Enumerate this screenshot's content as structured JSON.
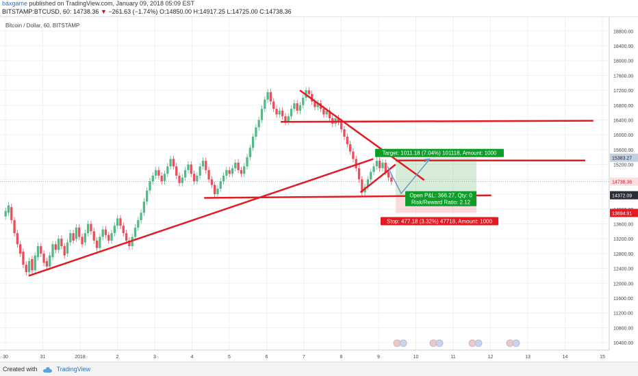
{
  "header": {
    "author": "baxgame",
    "published": "published on TradingView.com, January 09, 2018 05:09 EST",
    "symbol": "BITSTAMP:BTCUSD, 60",
    "last": "14738.36",
    "change_arrow": "▼",
    "change": "−261.63 (−1.74%)",
    "ohlc": "O:14850.00 H:14917.25 L:14725.00 C:14738.36"
  },
  "chart_title": "Bitcoin / Dollar, 60, BITSTAMP",
  "colors": {
    "up": "#53b987",
    "down": "#eb4d5c",
    "trend": "#e21a22",
    "target": "#0f9d2a",
    "stop": "#e21a22",
    "arrow": "#6f96c9",
    "axis_tag": "#c2d0e3"
  },
  "chart_data": {
    "type": "candlestick",
    "title": "Bitcoin / Dollar, 60, BITSTAMP",
    "y_ticks": [
      "18800.00",
      "18400.00",
      "18000.00",
      "17600.00",
      "17200.00",
      "16800.00",
      "16400.00",
      "16000.00",
      "15600.00",
      "15200.00",
      "14800.00",
      "14400.00",
      "14000.00",
      "13600.00",
      "13200.00",
      "12800.00",
      "12400.00",
      "12000.00",
      "11600.00",
      "11200.00",
      "10800.00",
      "10400.00"
    ],
    "x_ticks": [
      "30",
      "31",
      "2018",
      "2",
      "3",
      "4",
      "5",
      "6",
      "7",
      "8",
      "9",
      "10",
      "11",
      "12",
      "13",
      "14",
      "15"
    ],
    "ylim": [
      10200,
      19100
    ],
    "price_tags": [
      {
        "label": "15383.27",
        "value": 15383.27,
        "kind": "target"
      },
      {
        "label": "14738.36",
        "value": 14738.36,
        "kind": "last"
      },
      {
        "label": "14372.09",
        "value": 14372.09,
        "kind": "entry"
      },
      {
        "label": "13894.91",
        "value": 13894.91,
        "kind": "stop"
      }
    ],
    "position": {
      "target_label": "Target: 1011.18 (7.04%) 101118, Amount: 1000",
      "pnl_label": "Open P&L: 366.27, Qty: 0",
      "rr_label": "Risk/Reward Ratio: 2.12",
      "stop_label": "Stop: 477.18 (3.32%) 47718, Amount: 1000",
      "entry": 14372.09,
      "target": 15383.27,
      "stop": 13894.91
    },
    "candles": [
      [
        13800,
        13950
      ],
      [
        13900,
        14100
      ],
      [
        14050,
        13700
      ],
      [
        13700,
        13350
      ],
      [
        13350,
        13050
      ],
      [
        13050,
        12800
      ],
      [
        12850,
        12500
      ],
      [
        12500,
        12300
      ],
      [
        12300,
        12600
      ],
      [
        12650,
        12350
      ],
      [
        12350,
        12750
      ],
      [
        12700,
        13000
      ],
      [
        13000,
        12800
      ],
      [
        12800,
        12550
      ],
      [
        12600,
        12450
      ],
      [
        12450,
        12750
      ],
      [
        12700,
        13050
      ],
      [
        13050,
        12900
      ],
      [
        12900,
        13200
      ],
      [
        13200,
        13000
      ],
      [
        13000,
        12750
      ],
      [
        12800,
        13100
      ],
      [
        13100,
        13350
      ],
      [
        13350,
        13150
      ],
      [
        13200,
        13500
      ],
      [
        13500,
        13250
      ],
      [
        13250,
        13050
      ],
      [
        13100,
        13350
      ],
      [
        13350,
        13600
      ],
      [
        13600,
        13400
      ],
      [
        13400,
        13150
      ],
      [
        13150,
        12950
      ],
      [
        12950,
        13250
      ],
      [
        13250,
        13450
      ],
      [
        13450,
        13300
      ],
      [
        13300,
        13150
      ],
      [
        13150,
        13350
      ],
      [
        13350,
        13550
      ],
      [
        13550,
        13750
      ],
      [
        13750,
        13550
      ],
      [
        13550,
        13350
      ],
      [
        13350,
        13150
      ],
      [
        13150,
        13000
      ],
      [
        13000,
        13250
      ],
      [
        13250,
        13500
      ],
      [
        13500,
        13700
      ],
      [
        13700,
        13900
      ],
      [
        13900,
        14200
      ],
      [
        14200,
        14500
      ],
      [
        14500,
        14750
      ],
      [
        14750,
        14900
      ],
      [
        14900,
        15050
      ],
      [
        15050,
        14900
      ],
      [
        14900,
        14750
      ],
      [
        14750,
        14950
      ],
      [
        14950,
        15150
      ],
      [
        15150,
        15350
      ],
      [
        15350,
        15150
      ],
      [
        15150,
        14900
      ],
      [
        14900,
        14700
      ],
      [
        14700,
        14850
      ],
      [
        14850,
        15050
      ],
      [
        15050,
        15200
      ],
      [
        15200,
        14950
      ],
      [
        14950,
        14750
      ],
      [
        14750,
        14900
      ],
      [
        14900,
        15150
      ],
      [
        15150,
        15300
      ],
      [
        15300,
        15050
      ],
      [
        15050,
        14800
      ],
      [
        14800,
        14650
      ],
      [
        14650,
        14400
      ],
      [
        14400,
        14550
      ],
      [
        14550,
        14750
      ],
      [
        14750,
        14900
      ],
      [
        14900,
        15050
      ],
      [
        15050,
        14950
      ],
      [
        14950,
        15100
      ],
      [
        15100,
        15250
      ],
      [
        15250,
        15050
      ],
      [
        15050,
        14950
      ],
      [
        14950,
        15150
      ],
      [
        15150,
        15400
      ],
      [
        15400,
        15650
      ],
      [
        15650,
        15950
      ],
      [
        15950,
        16200
      ],
      [
        16200,
        16400
      ],
      [
        16400,
        16700
      ],
      [
        16700,
        16950
      ],
      [
        16950,
        17150
      ],
      [
        17150,
        16900
      ],
      [
        16900,
        16700
      ],
      [
        16700,
        16550
      ],
      [
        16550,
        16650
      ],
      [
        16650,
        16500
      ],
      [
        16500,
        16350
      ],
      [
        16350,
        16500
      ],
      [
        16500,
        16700
      ],
      [
        16700,
        16850
      ],
      [
        16850,
        16650
      ],
      [
        16650,
        16800
      ],
      [
        16800,
        17000
      ],
      [
        17000,
        17200
      ],
      [
        17200,
        17100
      ],
      [
        17100,
        16900
      ],
      [
        16900,
        16750
      ],
      [
        16750,
        16850
      ],
      [
        16850,
        16700
      ],
      [
        16700,
        16550
      ],
      [
        16550,
        16650
      ],
      [
        16650,
        16450
      ],
      [
        16450,
        16300
      ],
      [
        16300,
        16450
      ],
      [
        16450,
        16350
      ],
      [
        16350,
        16150
      ],
      [
        16150,
        15950
      ],
      [
        15950,
        15750
      ],
      [
        15750,
        15550
      ],
      [
        15550,
        15350
      ],
      [
        15350,
        15100
      ],
      [
        15100,
        14800
      ],
      [
        14800,
        14450
      ],
      [
        14450,
        14600
      ],
      [
        14600,
        14800
      ],
      [
        14800,
        15000
      ],
      [
        15000,
        15150
      ],
      [
        15150,
        15300
      ],
      [
        15300,
        15100
      ],
      [
        15100,
        15250
      ],
      [
        15250,
        15000
      ],
      [
        15000,
        14850
      ],
      [
        14850,
        14740
      ]
    ],
    "trend_lines": [
      {
        "name": "ascending-support",
        "from": [
          0.045,
          12200
        ],
        "to": [
          0.585,
          15350
        ]
      },
      {
        "name": "descending-resistance",
        "from": [
          0.47,
          17200
        ],
        "to": [
          0.665,
          14780
        ]
      },
      {
        "name": "horizontal-resistance",
        "from": [
          0.44,
          16350
        ],
        "to": [
          0.93,
          16380
        ]
      },
      {
        "name": "horizontal-support",
        "from": [
          0.32,
          14300
        ],
        "to": [
          0.77,
          14370
        ]
      },
      {
        "name": "wedge-lower",
        "from": [
          0.565,
          14450
        ],
        "to": [
          0.62,
          15200
        ]
      }
    ]
  },
  "footer": {
    "created_with": "Created with",
    "brand": "TradingView"
  }
}
